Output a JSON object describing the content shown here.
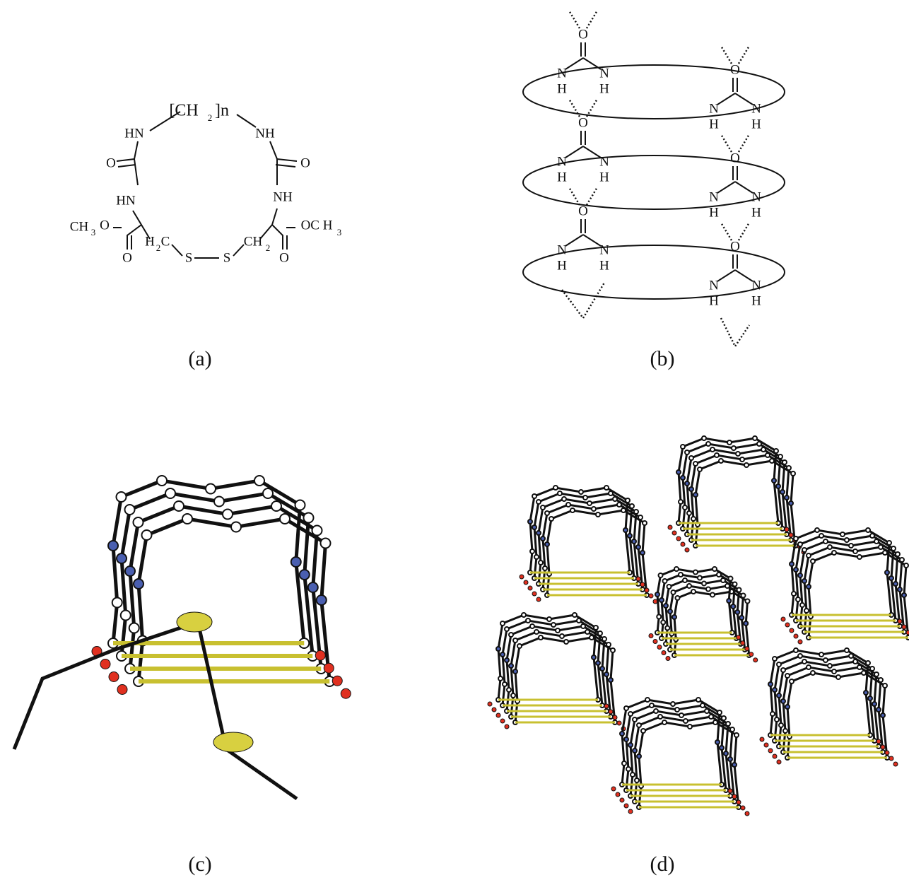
{
  "panels": [
    {
      "label": "(a)",
      "atoms": [
        "[CH",
        "2",
        "]n",
        "HN",
        "NH",
        "O",
        "O",
        "HN",
        "NH",
        "CH",
        "3",
        "O",
        "O",
        "H",
        "2",
        "C",
        "S",
        "S",
        "CH",
        "2",
        "OC H",
        "3",
        "O"
      ]
    },
    {
      "label": "(b)",
      "ureas": [
        [
          "O",
          "N",
          "N",
          "H",
          "H"
        ],
        [
          "O",
          "N",
          "N",
          "H",
          "H"
        ],
        [
          "O",
          "N",
          "N",
          "H",
          "H"
        ],
        [
          "O",
          "N",
          "N",
          "H",
          "H"
        ],
        [
          "O",
          "N",
          "N",
          "H",
          "H"
        ],
        [
          "O",
          "N",
          "N",
          "H",
          "H"
        ]
      ]
    },
    {
      "label": "(c)"
    },
    {
      "label": "(d)"
    }
  ]
}
